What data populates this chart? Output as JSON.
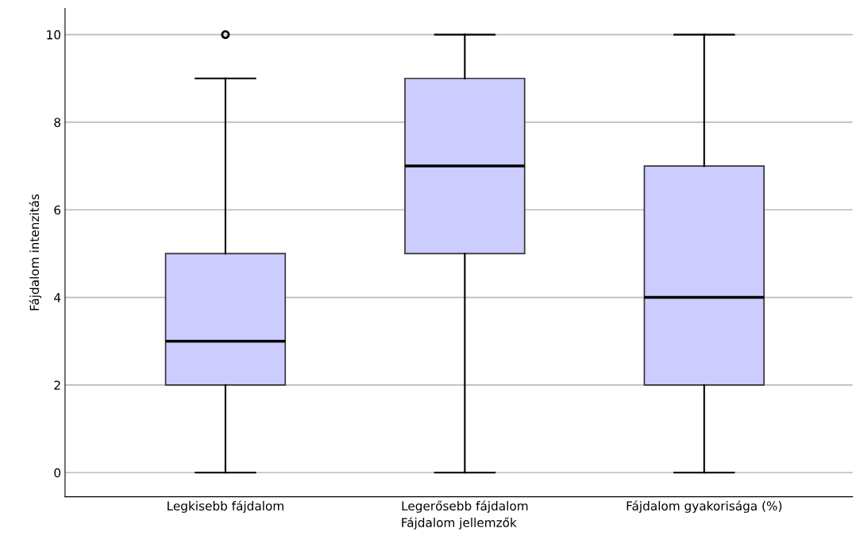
{
  "chart_data": {
    "type": "box",
    "xlabel": "Fájdalom jellemzők",
    "ylabel": "Fájdalom intenzitás",
    "categories": [
      "Legkisebb fájdalom",
      "Legerősebb fájdalom",
      "Fájdalom gyakorisága (%)"
    ],
    "boxes": [
      {
        "low": 0,
        "q1": 2,
        "median": 3,
        "q3": 5,
        "high": 9,
        "outliers": [
          10
        ]
      },
      {
        "low": 0,
        "q1": 5,
        "median": 7,
        "q3": 9,
        "high": 10
      },
      {
        "low": 0,
        "q1": 2,
        "median": 4,
        "q3": 7,
        "high": 10
      }
    ],
    "color": "#ccccff",
    "ylim": [
      -0.55,
      10.6
    ],
    "yticks": [
      0,
      2,
      4,
      6,
      8,
      10
    ],
    "grid": "y"
  }
}
